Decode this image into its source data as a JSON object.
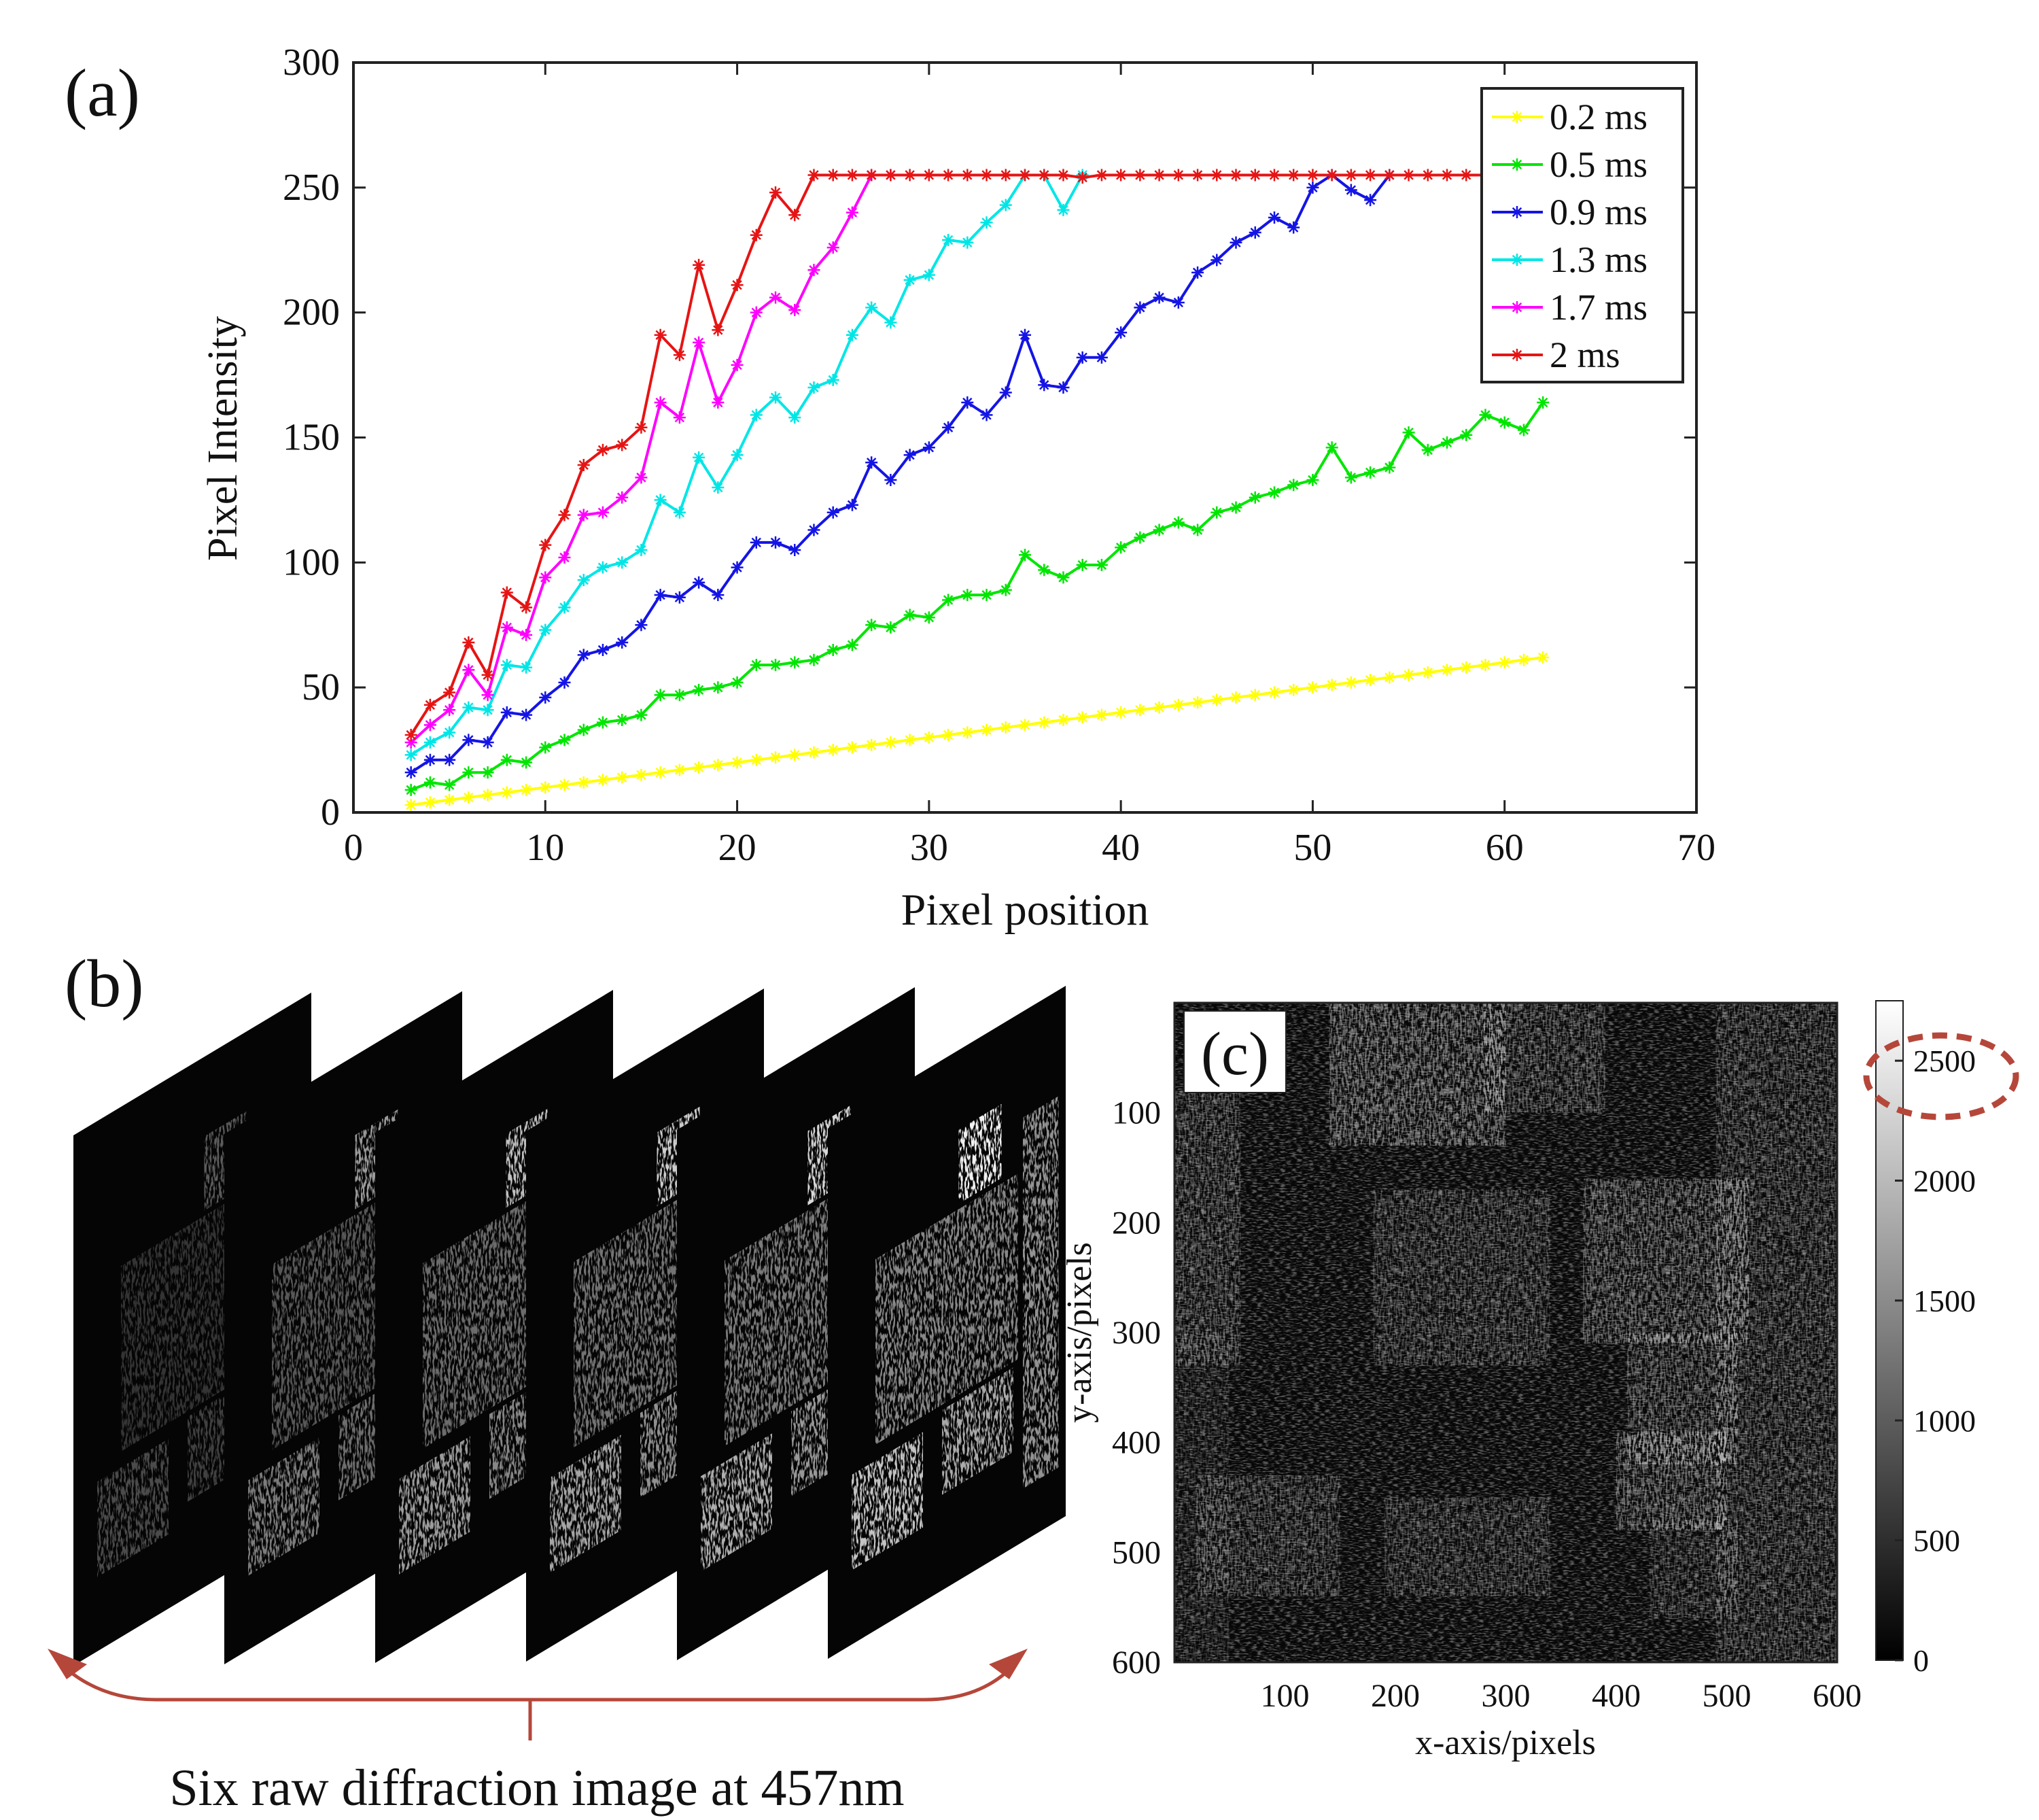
{
  "panels": {
    "a": {
      "label": "(a)",
      "chart_data": {
        "type": "line",
        "xlabel": "Pixel position",
        "ylabel": "Pixel Intensity",
        "xlim": [
          0,
          70
        ],
        "ylim": [
          0,
          300
        ],
        "x_ticks": [
          0,
          10,
          20,
          30,
          40,
          50,
          60,
          70
        ],
        "y_ticks": [
          0,
          50,
          100,
          150,
          200,
          250,
          300
        ],
        "grid": false,
        "legend_position": "top-right",
        "series": [
          {
            "name": "0.2 ms",
            "color": "#ffff00",
            "x": [
              3,
              4,
              5,
              6,
              7,
              8,
              9,
              10,
              11,
              12,
              13,
              14,
              15,
              16,
              17,
              18,
              19,
              20,
              21,
              22,
              23,
              24,
              25,
              26,
              27,
              28,
              29,
              30,
              31,
              32,
              33,
              34,
              35,
              36,
              37,
              38,
              39,
              40,
              41,
              42,
              43,
              44,
              45,
              46,
              47,
              48,
              49,
              50,
              51,
              52,
              53,
              54,
              55,
              56,
              57,
              58,
              59,
              60,
              61,
              62
            ],
            "y": [
              3,
              4,
              5,
              6,
              7,
              8,
              9,
              10,
              11,
              12,
              13,
              14,
              15,
              16,
              17,
              18,
              19,
              20,
              21,
              22,
              23,
              24,
              25,
              26,
              27,
              28,
              29,
              30,
              31,
              32,
              33,
              34,
              35,
              36,
              37,
              38,
              39,
              40,
              41,
              42,
              43,
              44,
              45,
              46,
              47,
              48,
              49,
              50,
              51,
              52,
              53,
              54,
              55,
              56,
              57,
              58,
              59,
              60,
              61,
              62
            ]
          },
          {
            "name": "0.5 ms",
            "color": "#00e600",
            "x": [
              3,
              4,
              5,
              6,
              7,
              8,
              9,
              10,
              11,
              12,
              13,
              14,
              15,
              16,
              17,
              18,
              19,
              20,
              21,
              22,
              23,
              24,
              25,
              26,
              27,
              28,
              29,
              30,
              31,
              32,
              33,
              34,
              35,
              36,
              37,
              38,
              39,
              40,
              41,
              42,
              43,
              44,
              45,
              46,
              47,
              48,
              49,
              50,
              51,
              52,
              53,
              54,
              55,
              56,
              57,
              58,
              59,
              60,
              61,
              62
            ],
            "y": [
              9,
              12,
              11,
              16,
              16,
              21,
              20,
              26,
              29,
              33,
              36,
              37,
              39,
              47,
              47,
              49,
              50,
              52,
              59,
              59,
              60,
              61,
              65,
              67,
              75,
              74,
              79,
              78,
              85,
              87,
              87,
              89,
              103,
              97,
              94,
              99,
              99,
              106,
              110,
              113,
              116,
              113,
              120,
              122,
              126,
              128,
              131,
              133,
              146,
              134,
              136,
              138,
              152,
              145,
              148,
              151,
              159,
              156,
              153,
              164
            ]
          },
          {
            "name": "0.9 ms",
            "color": "#1414e6",
            "x": [
              3,
              4,
              5,
              6,
              7,
              8,
              9,
              10,
              11,
              12,
              13,
              14,
              15,
              16,
              17,
              18,
              19,
              20,
              21,
              22,
              23,
              24,
              25,
              26,
              27,
              28,
              29,
              30,
              31,
              32,
              33,
              34,
              35,
              36,
              37,
              38,
              39,
              40,
              41,
              42,
              43,
              44,
              45,
              46,
              47,
              48,
              49,
              50,
              51,
              52,
              53,
              54
            ],
            "y": [
              16,
              21,
              21,
              29,
              28,
              40,
              39,
              46,
              52,
              63,
              65,
              68,
              75,
              87,
              86,
              92,
              87,
              98,
              108,
              108,
              105,
              113,
              120,
              123,
              140,
              133,
              143,
              146,
              154,
              164,
              159,
              168,
              191,
              171,
              170,
              182,
              182,
              192,
              202,
              206,
              204,
              216,
              221,
              228,
              232,
              238,
              234,
              250,
              255,
              249,
              245,
              255
            ]
          },
          {
            "name": "1.3 ms",
            "color": "#00e6e6",
            "x": [
              3,
              4,
              5,
              6,
              7,
              8,
              9,
              10,
              11,
              12,
              13,
              14,
              15,
              16,
              17,
              18,
              19,
              20,
              21,
              22,
              23,
              24,
              25,
              26,
              27,
              28,
              29,
              30,
              31,
              32,
              33,
              34,
              35,
              36,
              37,
              38
            ],
            "y": [
              23,
              28,
              32,
              42,
              41,
              59,
              58,
              73,
              82,
              93,
              98,
              100,
              105,
              125,
              120,
              142,
              130,
              143,
              159,
              166,
              158,
              170,
              173,
              191,
              202,
              196,
              213,
              215,
              229,
              228,
              236,
              243,
              255,
              255,
              241,
              255
            ]
          },
          {
            "name": "1.7 ms",
            "color": "#ff00ff",
            "x": [
              3,
              4,
              5,
              6,
              7,
              8,
              9,
              10,
              11,
              12,
              13,
              14,
              15,
              16,
              17,
              18,
              19,
              20,
              21,
              22,
              23,
              24,
              25,
              26,
              27,
              28
            ],
            "y": [
              28,
              35,
              41,
              57,
              47,
              74,
              71,
              94,
              102,
              119,
              120,
              126,
              134,
              164,
              158,
              188,
              164,
              179,
              200,
              206,
              201,
              217,
              226,
              240,
              255,
              255
            ]
          },
          {
            "name": "2 ms",
            "color": "#e61414",
            "x": [
              3,
              4,
              5,
              6,
              7,
              8,
              9,
              10,
              11,
              12,
              13,
              14,
              15,
              16,
              17,
              18,
              19,
              20,
              21,
              22,
              23,
              24,
              25,
              26,
              27,
              28,
              29,
              30,
              31,
              32,
              33,
              34,
              35,
              36,
              37,
              38,
              39,
              40,
              41,
              42,
              43,
              44,
              45,
              46,
              47,
              48,
              49,
              50,
              51,
              52,
              53,
              54,
              55,
              56,
              57,
              58,
              59,
              60,
              61,
              62
            ],
            "y": [
              31,
              43,
              48,
              68,
              55,
              88,
              82,
              107,
              119,
              139,
              145,
              147,
              154,
              191,
              183,
              219,
              193,
              211,
              231,
              248,
              239,
              255,
              255,
              255,
              255,
              255,
              255,
              255,
              255,
              255,
              255,
              255,
              255,
              255,
              255,
              254,
              255,
              255,
              255,
              255,
              255,
              255,
              255,
              255,
              255,
              255,
              255,
              255,
              255,
              255,
              255,
              255,
              255,
              255,
              255,
              255,
              255,
              255,
              255,
              255
            ]
          }
        ]
      }
    },
    "b": {
      "label": "(b)",
      "caption": "Six raw diffraction image at 457nm",
      "frame_count": 6
    },
    "c": {
      "label": "(c)",
      "chart_data": {
        "type": "heatmap",
        "xlabel": "x-axis/pixels",
        "ylabel": "y-axis/pixels",
        "xlim": [
          0,
          600
        ],
        "ylim": [
          600,
          0
        ],
        "x_ticks": [
          100,
          200,
          300,
          400,
          500,
          600
        ],
        "y_ticks": [
          100,
          200,
          300,
          400,
          500,
          600
        ],
        "colormap": "gray",
        "colorbar_range": [
          0,
          2750
        ],
        "colorbar_ticks": [
          0,
          500,
          1000,
          1500,
          2000,
          2500
        ],
        "highlighted_tick": 2500,
        "highlight_color": "#b5473a"
      }
    }
  }
}
